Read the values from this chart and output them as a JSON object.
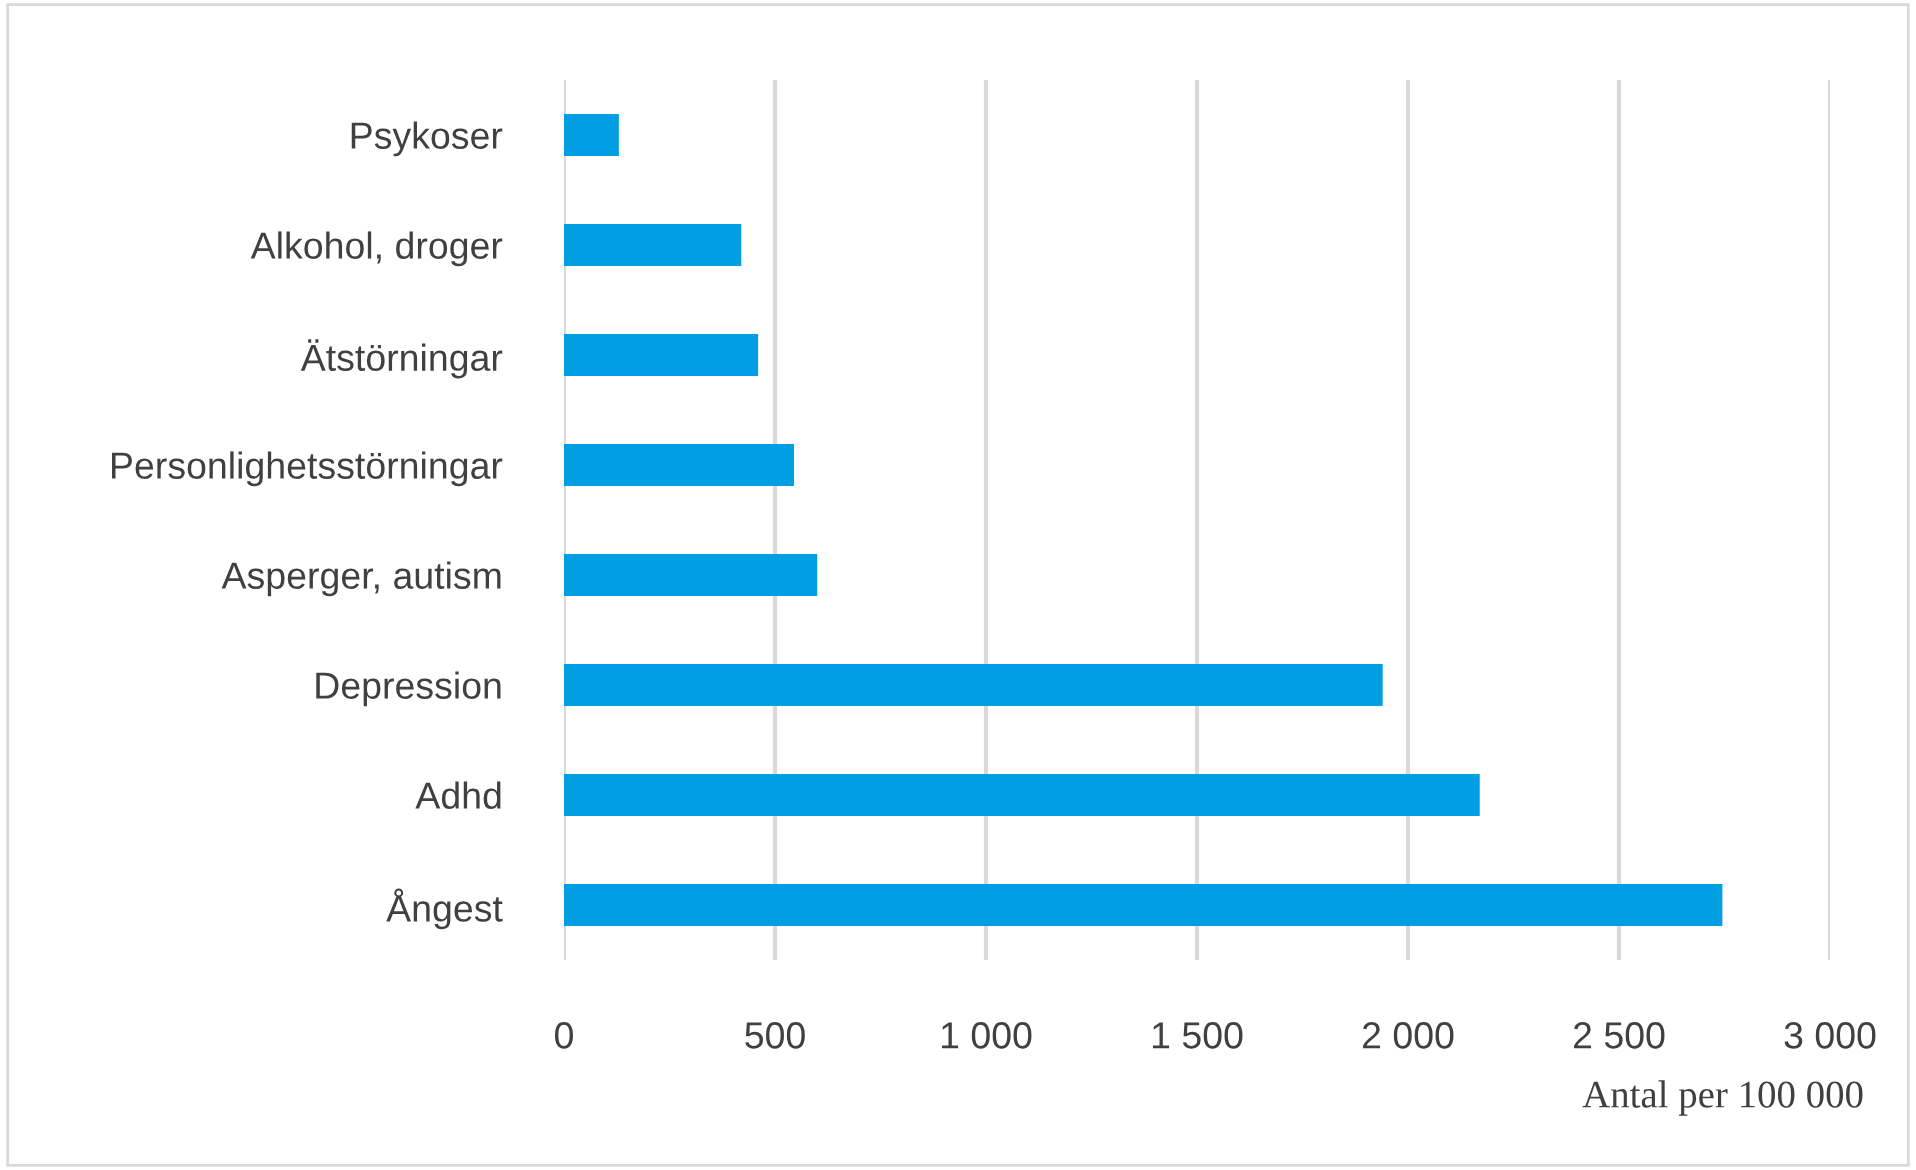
{
  "chart_data": {
    "type": "bar",
    "orientation": "horizontal",
    "xlabel": "Antal per 100 000",
    "categories": [
      "Psykoser",
      "Alkohol, droger",
      "Ätstörningar",
      "Personlighetsstörningar",
      "Asperger, autism",
      "Depression",
      "Adhd",
      "Ångest"
    ],
    "values": [
      130,
      420,
      460,
      545,
      600,
      1940,
      2170,
      2745
    ],
    "color": "#009fe3",
    "xlim": [
      0,
      3000
    ],
    "xticks": [
      0,
      500,
      {
        "value": 1000,
        "label": "1 000"
      },
      {
        "value": 1500,
        "label": "1 500"
      },
      {
        "value": 2000,
        "label": "2 000"
      },
      {
        "value": 2500,
        "label": "2 500"
      },
      {
        "value": 3000,
        "label": "3 000"
      }
    ],
    "grid": "x",
    "legend": false
  }
}
